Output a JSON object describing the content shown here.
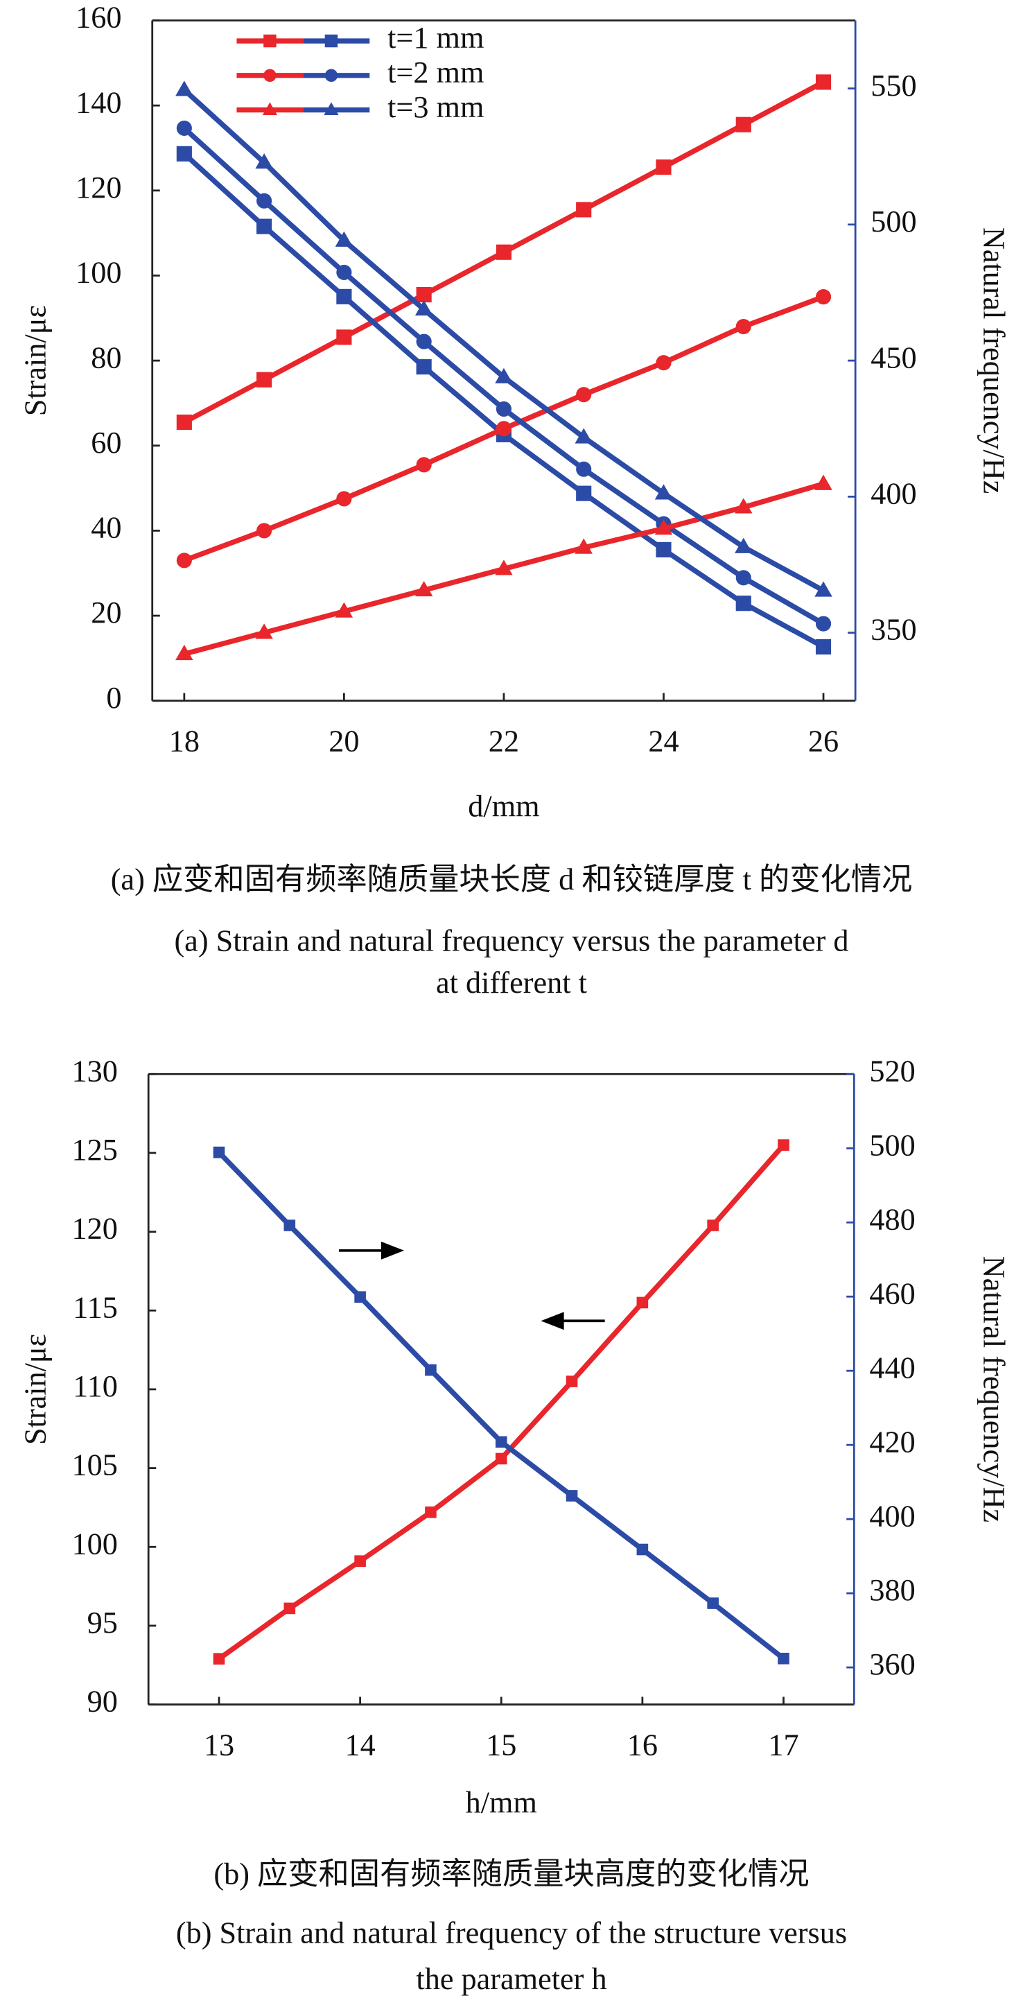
{
  "chart_data": [
    {
      "type": "line",
      "x": [
        18,
        19,
        20,
        21,
        22,
        23,
        24,
        25,
        26
      ],
      "xlim": [
        17.6,
        26.4
      ],
      "xticks": [
        18,
        20,
        22,
        24,
        26
      ],
      "ylim": [
        0,
        160
      ],
      "yticks": [
        0,
        20,
        40,
        60,
        80,
        100,
        120,
        140,
        160
      ],
      "y2lim": [
        325,
        575
      ],
      "y2ticks": [
        350,
        400,
        450,
        500,
        550
      ],
      "xlabel": "d/mm",
      "ylabel": "Strain/με",
      "y2label": "Natural frequency/Hz",
      "color": "#e8262b",
      "y2_color": "#2b4ba6",
      "legend": "upper center",
      "series": [
        {
          "name": "t=1 mm",
          "marker": "square",
          "values": [
            65.5,
            75.5,
            85.5,
            95.5,
            105.5,
            115.5,
            125.5,
            135.5,
            145.5
          ],
          "y2_values": [
            526,
            499.3,
            473.5,
            447.7,
            422.8,
            401.2,
            380.5,
            360.8,
            344.8
          ]
        },
        {
          "name": "t=2 mm",
          "marker": "circle",
          "values": [
            33,
            40,
            47.5,
            55.5,
            64,
            72,
            79.5,
            88,
            95
          ],
          "y2_values": [
            535.4,
            508.7,
            482.4,
            457,
            432.2,
            410.1,
            390,
            370.2,
            353.3
          ]
        },
        {
          "name": "t=3 mm",
          "marker": "triangle",
          "values": [
            11,
            16,
            21,
            26,
            31,
            36,
            40.5,
            45.5,
            51
          ],
          "y2_values": [
            549.5,
            522.8,
            494.1,
            468.8,
            443.9,
            421.8,
            401.2,
            381.5,
            365.5
          ]
        }
      ],
      "caption_zh": "(a) 应变和固有频率随质量块长度 d 和铰链厚度 t 的变化情况",
      "caption_en": [
        "(a) Strain and natural frequency versus the parameter d",
        "at different t"
      ]
    },
    {
      "type": "line",
      "x": [
        13,
        13.5,
        14,
        14.5,
        15,
        15.5,
        16,
        16.5,
        17
      ],
      "xlim": [
        12.5,
        17.5
      ],
      "xticks": [
        13,
        14,
        15,
        16,
        17
      ],
      "ylim": [
        90,
        130
      ],
      "yticks": [
        90,
        95,
        100,
        105,
        110,
        115,
        120,
        125,
        130
      ],
      "y2lim": [
        350,
        520
      ],
      "y2ticks": [
        360,
        380,
        400,
        420,
        440,
        460,
        480,
        500,
        520
      ],
      "xlabel": "h/mm",
      "ylabel": "Strain/με",
      "y2label": "Natural frequency/Hz",
      "color": "#e8262b",
      "y2_color": "#2b4ba6",
      "series": [
        {
          "marker": "square",
          "values": [
            92.9,
            96.1,
            99.1,
            102.2,
            105.6,
            110.5,
            115.5,
            120.4,
            125.5
          ],
          "y2_values": [
            498.9,
            479.2,
            459.9,
            440.2,
            420.8,
            406.3,
            391.8,
            377.3,
            362.4
          ]
        }
      ],
      "caption_zh": "(b) 应变和固有频率随质量块高度的变化情况",
      "caption_en": [
        "(b) Strain and natural frequency of the structure versus",
        "the parameter h"
      ]
    }
  ]
}
